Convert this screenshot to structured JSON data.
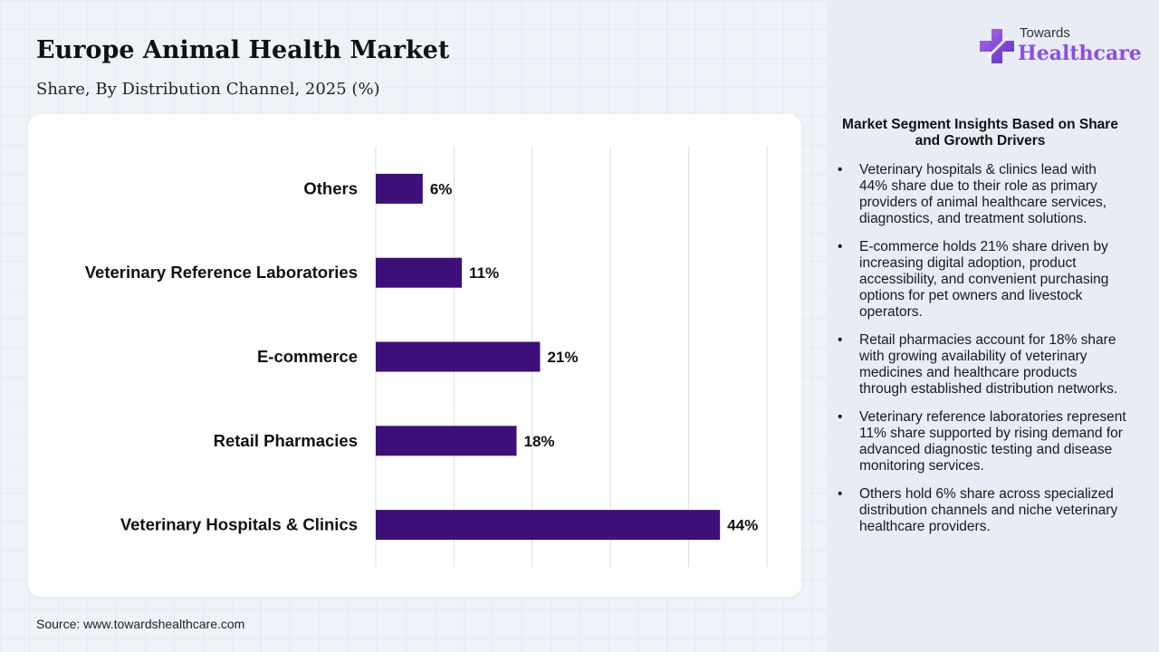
{
  "header": {
    "title": "Europe Animal Health Market",
    "subtitle": "Share, By Distribution Channel, 2025 (%)"
  },
  "logo": {
    "top_text": "Towards",
    "bottom_text": "Healthcare",
    "icon": "cross-icon",
    "color": "#8e4ee0"
  },
  "chart_data": {
    "type": "bar",
    "orientation": "horizontal",
    "categories": [
      "Others",
      "Veterinary Reference Laboratories",
      "E-commerce",
      "Retail Pharmacies",
      "Veterinary Hospitals & Clinics"
    ],
    "values": [
      6,
      11,
      21,
      18,
      44
    ],
    "labels": [
      "6%",
      "11%",
      "21%",
      "18%",
      "44%"
    ],
    "xlim": [
      0,
      50
    ],
    "grid": true,
    "bar_color": "#3d0f7a"
  },
  "source": "Source: www.towardshealthcare.com",
  "insights": {
    "title": "Market Segment Insights Based on Share and Growth Drivers",
    "bullet": "•",
    "items": [
      "Veterinary hospitals & clinics lead with 44% share due to their role as primary providers of animal healthcare services, diagnostics, and treatment solutions.",
      "E-commerce holds 21% share driven by increasing digital adoption, product accessibility, and convenient purchasing options for pet owners and livestock operators.",
      "Retail pharmacies account for 18% share with growing availability of veterinary medicines and healthcare products through established distribution networks.",
      "Veterinary reference laboratories represent 11% share supported by rising demand for advanced diagnostic testing and disease monitoring services.",
      "Others hold 6% share across specialized distribution channels and niche veterinary healthcare providers."
    ]
  }
}
